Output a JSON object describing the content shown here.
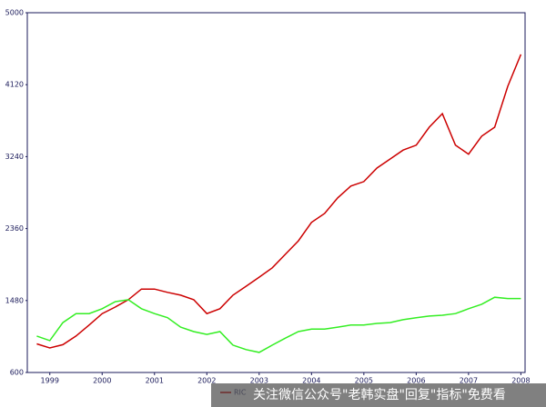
{
  "chart_data": {
    "type": "line",
    "x": [
      1998.75,
      1999,
      1999.25,
      1999.5,
      1999.75,
      2000,
      2000.25,
      2000.5,
      2000.75,
      2001,
      2001.25,
      2001.5,
      2001.75,
      2002,
      2002.25,
      2002.5,
      2002.75,
      2003,
      2003.25,
      2003.5,
      2003.75,
      2004,
      2004.25,
      2004.5,
      2004.75,
      2005,
      2005.25,
      2005.5,
      2005.75,
      2006,
      2006.25,
      2006.5,
      2006.75,
      2007,
      2007.25,
      2007.5,
      2007.75,
      2008
    ],
    "series": [
      {
        "name": "RIC",
        "color": "#cc0000",
        "values": [
          950,
          900,
          940,
          1045,
          1180,
          1320,
          1400,
          1490,
          1620,
          1620,
          1580,
          1545,
          1490,
          1320,
          1380,
          1545,
          1655,
          1765,
          1880,
          2045,
          2210,
          2435,
          2545,
          2735,
          2880,
          2935,
          3100,
          3210,
          3320,
          3380,
          3600,
          3765,
          3380,
          3270,
          3490,
          3600,
          4100,
          4490
        ]
      },
      {
        "color": "#33ee22",
        "values": [
          1045,
          990,
          1210,
          1320,
          1320,
          1380,
          1465,
          1490,
          1380,
          1320,
          1270,
          1155,
          1100,
          1065,
          1100,
          935,
          880,
          845,
          935,
          1020,
          1100,
          1130,
          1130,
          1155,
          1180,
          1180,
          1200,
          1210,
          1245,
          1270,
          1290,
          1300,
          1320,
          1380,
          1435,
          1520,
          1505,
          1505
        ]
      }
    ],
    "xlim": [
      1998.57,
      2008.08
    ],
    "xticks": [
      1999,
      2000,
      2001,
      2002,
      2003,
      2004,
      2005,
      2006,
      2007,
      2008
    ],
    "ylim": [
      600,
      5000
    ],
    "yticks": [
      600,
      1480,
      2360,
      3240,
      4120,
      5000
    ],
    "watermark": "关注微信公众号\"老韩实盘\"回复\"指标\"免费看"
  }
}
